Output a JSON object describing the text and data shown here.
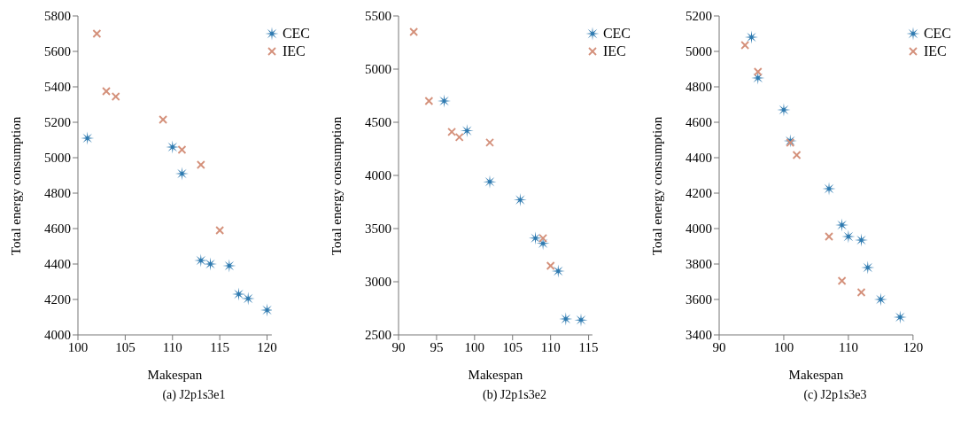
{
  "chart_data": [
    {
      "type": "scatter",
      "xlabel": "Makespan",
      "ylabel": "Total energy consumption",
      "annotations": [
        "(a) J2p1s3e1"
      ],
      "xlim": [
        100,
        120.5
      ],
      "xticks": [
        100,
        105,
        110,
        115,
        120
      ],
      "ylim": [
        4000,
        5800
      ],
      "yticks": [
        4000,
        4200,
        4400,
        4600,
        4800,
        5000,
        5200,
        5400,
        5600,
        5800
      ],
      "grid": false,
      "legend": "top right",
      "series": [
        {
          "name": "CEC",
          "color": "#2e7ab0",
          "marker": "star",
          "x": [
            101,
            110,
            111,
            113,
            114,
            116,
            117,
            118,
            120
          ],
          "values": [
            5110,
            5060,
            4910,
            4420,
            4400,
            4390,
            4230,
            4205,
            4140
          ]
        },
        {
          "name": "IEC",
          "color": "#d4907a",
          "marker": "cross",
          "x": [
            102,
            103,
            104,
            109,
            111,
            113,
            115
          ],
          "values": [
            5700,
            5375,
            5345,
            5215,
            5045,
            4960,
            4590
          ]
        }
      ]
    },
    {
      "type": "scatter",
      "xlabel": "Makespan",
      "ylabel": "Total energy consumption",
      "annotations": [
        "(b) J2p1s3e2"
      ],
      "xlim": [
        90,
        115.5
      ],
      "xticks": [
        90,
        95,
        100,
        105,
        110,
        115
      ],
      "ylim": [
        2500,
        5500
      ],
      "yticks": [
        2500,
        3000,
        3500,
        4000,
        4500,
        5000,
        5500
      ],
      "grid": false,
      "legend": "top right",
      "series": [
        {
          "name": "CEC",
          "color": "#2e7ab0",
          "marker": "star",
          "x": [
            96,
            99,
            102,
            106,
            108,
            109,
            111,
            112,
            114
          ],
          "values": [
            4700,
            4420,
            3940,
            3770,
            3410,
            3360,
            3100,
            2650,
            2640
          ]
        },
        {
          "name": "IEC",
          "color": "#d4907a",
          "marker": "cross",
          "x": [
            92,
            94,
            97,
            98,
            102,
            109,
            110
          ],
          "values": [
            5350,
            4700,
            4410,
            4360,
            4310,
            3410,
            3150
          ]
        }
      ]
    },
    {
      "type": "scatter",
      "xlabel": "Makespan",
      "ylabel": "Total energy consumption",
      "annotations": [
        "(c) J2p1s3e3"
      ],
      "xlim": [
        90,
        120
      ],
      "xticks": [
        90,
        100,
        110,
        120
      ],
      "ylim": [
        3400,
        5200
      ],
      "yticks": [
        3400,
        3600,
        3800,
        4000,
        4200,
        4400,
        4600,
        4800,
        5000,
        5200
      ],
      "grid": false,
      "legend": "top right",
      "series": [
        {
          "name": "CEC",
          "color": "#2e7ab0",
          "marker": "star",
          "x": [
            95,
            96,
            100,
            101,
            107,
            109,
            110,
            112,
            113,
            115,
            118
          ],
          "values": [
            5080,
            4850,
            4670,
            4495,
            4225,
            4020,
            3955,
            3935,
            3780,
            3600,
            3500
          ]
        },
        {
          "name": "IEC",
          "color": "#d4907a",
          "marker": "cross",
          "x": [
            94,
            96,
            101,
            102,
            107,
            109,
            112
          ],
          "values": [
            5035,
            4885,
            4485,
            4415,
            3955,
            3705,
            3640
          ]
        }
      ]
    }
  ]
}
